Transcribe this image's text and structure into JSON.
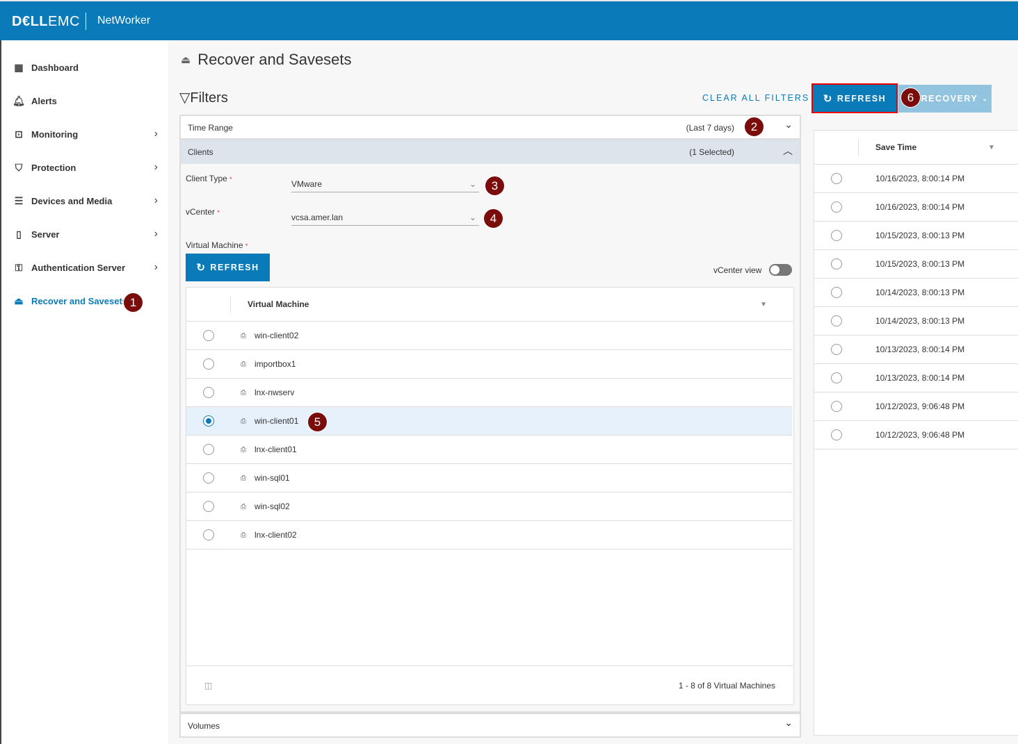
{
  "header": {
    "logo": "DELLEMC",
    "app": "NetWorker",
    "brand_color": "#0a7bb8"
  },
  "sidebar": {
    "items": [
      {
        "label": "Dashboard",
        "icon": "dashboard-icon",
        "chevron": false
      },
      {
        "label": "Alerts",
        "icon": "bell-icon",
        "chevron": false
      },
      {
        "label": "Monitoring",
        "icon": "monitoring-icon",
        "chevron": true
      },
      {
        "label": "Protection",
        "icon": "shield-icon",
        "chevron": true
      },
      {
        "label": "Devices and Media",
        "icon": "storage-icon",
        "chevron": true
      },
      {
        "label": "Server",
        "icon": "server-icon",
        "chevron": true
      },
      {
        "label": "Authentication Server",
        "icon": "auth-server-icon",
        "chevron": true
      },
      {
        "label": "Recover and Savesets",
        "icon": "recover-icon",
        "chevron": false,
        "active": true
      }
    ]
  },
  "page": {
    "title": "Recover and Savesets"
  },
  "filters": {
    "title": "Filters",
    "clear": "CLEAR ALL FILTERS",
    "time_range": {
      "label": "Time Range",
      "value": "(Last 7 days)"
    },
    "clients": {
      "label": "Clients",
      "value": "(1 Selected)"
    },
    "client_type": {
      "label": "Client Type",
      "value": "VMware"
    },
    "vcenter": {
      "label": "vCenter",
      "value": "vcsa.amer.lan"
    },
    "vm_label": "Virtual Machine",
    "refresh": "REFRESH",
    "vcenter_view": "vCenter view",
    "volumes": "Volumes"
  },
  "vm_table": {
    "header": "Virtual Machine",
    "footer": "1 - 8 of 8 Virtual Machines",
    "rows": [
      {
        "name": "win-client02",
        "selected": false
      },
      {
        "name": "importbox1",
        "selected": false
      },
      {
        "name": "lnx-nwserv",
        "selected": false
      },
      {
        "name": "win-client01",
        "selected": true
      },
      {
        "name": "lnx-client01",
        "selected": false
      },
      {
        "name": "win-sql01",
        "selected": false
      },
      {
        "name": "win-sql02",
        "selected": false
      },
      {
        "name": "lnx-client02",
        "selected": false
      }
    ]
  },
  "actions": {
    "refresh": "REFRESH",
    "recovery": "RECOVERY"
  },
  "saveset_table": {
    "header": "Save Time",
    "rows": [
      "10/16/2023, 8:00:14 PM",
      "10/16/2023, 8:00:14 PM",
      "10/15/2023, 8:00:13 PM",
      "10/15/2023, 8:00:13 PM",
      "10/14/2023, 8:00:13 PM",
      "10/14/2023, 8:00:13 PM",
      "10/13/2023, 8:00:14 PM",
      "10/13/2023, 8:00:14 PM",
      "10/12/2023, 9:06:48 PM",
      "10/12/2023, 9:06:48 PM"
    ]
  },
  "badges": [
    "1",
    "2",
    "3",
    "4",
    "5",
    "6"
  ]
}
